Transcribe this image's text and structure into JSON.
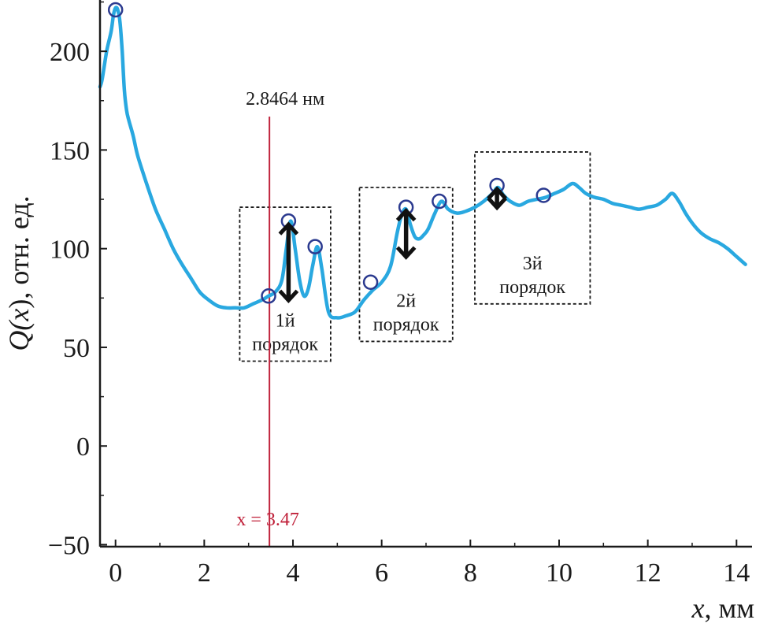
{
  "chart_data": {
    "type": "line",
    "xlabel": {
      "var": "x",
      "unit": ", мм"
    },
    "ylabel": {
      "var_open": "Q(",
      "var_x": "x",
      "var_close": ")",
      "unit": ", отн. ед."
    },
    "xlim": [
      -0.35,
      14.35
    ],
    "ylim": [
      -51,
      226
    ],
    "xticks": [
      0,
      2,
      4,
      6,
      8,
      10,
      12,
      14
    ],
    "yticks": [
      -50,
      0,
      50,
      100,
      150,
      200
    ],
    "xtick_labels": [
      "0",
      "2",
      "4",
      "6",
      "8",
      "10",
      "12",
      "14"
    ],
    "ytick_labels": [
      "−50",
      "0",
      "50",
      "100",
      "150",
      "200"
    ],
    "line_color": "#29a8e0",
    "marker_color": "#2b3a8f",
    "vline_color": "#c0223b",
    "series": [
      {
        "x": [
          -0.35,
          -0.3,
          -0.2,
          -0.1,
          -0.05,
          0.0,
          0.05,
          0.1,
          0.15,
          0.2,
          0.25,
          0.3,
          0.4,
          0.5,
          0.7,
          0.9,
          1.1,
          1.3,
          1.5,
          1.7,
          1.9,
          2.1,
          2.3,
          2.5,
          2.7,
          2.9,
          3.1,
          3.3,
          3.45,
          3.6,
          3.75,
          3.85,
          3.95,
          4.05,
          4.15,
          4.25,
          4.35,
          4.45,
          4.55,
          4.65,
          4.8,
          5.0,
          5.2,
          5.4,
          5.6,
          5.8,
          6.0,
          6.2,
          6.35,
          6.45,
          6.55,
          6.65,
          6.75,
          6.85,
          6.95,
          7.05,
          7.2,
          7.35,
          7.5,
          7.7,
          7.9,
          8.1,
          8.3,
          8.5,
          8.62,
          8.75,
          8.9,
          9.1,
          9.3,
          9.5,
          9.7,
          9.9,
          10.1,
          10.3,
          10.45,
          10.6,
          10.8,
          11.0,
          11.2,
          11.4,
          11.6,
          11.8,
          12.0,
          12.2,
          12.4,
          12.55,
          12.7,
          12.85,
          13.0,
          13.2,
          13.4,
          13.6,
          13.8,
          14.0,
          14.2
        ],
        "y": [
          182,
          186,
          200,
          210,
          218,
          222,
          221,
          215,
          200,
          180,
          170,
          165,
          157,
          147,
          133,
          120,
          110,
          100,
          92,
          85,
          78,
          74,
          71,
          70,
          70,
          70,
          72,
          74,
          76,
          78,
          84,
          100,
          114,
          100,
          84,
          76,
          80,
          92,
          101,
          90,
          68,
          65,
          66,
          68,
          74,
          79,
          83,
          91,
          108,
          117,
          120,
          112,
          106,
          105,
          107,
          110,
          118,
          124,
          120,
          118,
          119,
          121,
          124,
          128,
          131,
          127,
          124,
          122,
          124,
          125,
          126,
          128,
          130,
          133,
          131,
          128,
          126,
          125,
          123,
          122,
          121,
          120,
          121,
          122,
          125,
          128,
          124,
          118,
          113,
          108,
          105,
          103,
          100,
          96,
          92
        ]
      }
    ],
    "markers": [
      {
        "x": 0.0,
        "y": 221
      },
      {
        "x": 3.45,
        "y": 76
      },
      {
        "x": 3.9,
        "y": 114
      },
      {
        "x": 4.5,
        "y": 101
      },
      {
        "x": 5.75,
        "y": 83
      },
      {
        "x": 6.55,
        "y": 121
      },
      {
        "x": 7.3,
        "y": 124
      },
      {
        "x": 8.6,
        "y": 132
      },
      {
        "x": 9.65,
        "y": 127
      }
    ],
    "double_arrows": [
      {
        "x": 3.9,
        "y_from": 113,
        "y_to": 73
      },
      {
        "x": 6.55,
        "y_from": 120,
        "y_to": 95
      },
      {
        "x": 8.6,
        "y_from": 131,
        "y_to": 120
      }
    ],
    "boxes": [
      {
        "x0": 2.8,
        "x1": 4.85,
        "y0": 43,
        "y1": 121,
        "lines": [
          "1й",
          "порядок"
        ]
      },
      {
        "x0": 5.5,
        "x1": 7.6,
        "y0": 53,
        "y1": 131,
        "lines": [
          "2й",
          "порядок"
        ]
      },
      {
        "x0": 8.1,
        "x1": 10.7,
        "y0": 72,
        "y1": 149,
        "lines": [
          "3й",
          "порядок"
        ]
      }
    ],
    "vline": {
      "x": 3.47,
      "top_label": "2.8464 нм",
      "bottom_label": "x = 3.47"
    }
  }
}
